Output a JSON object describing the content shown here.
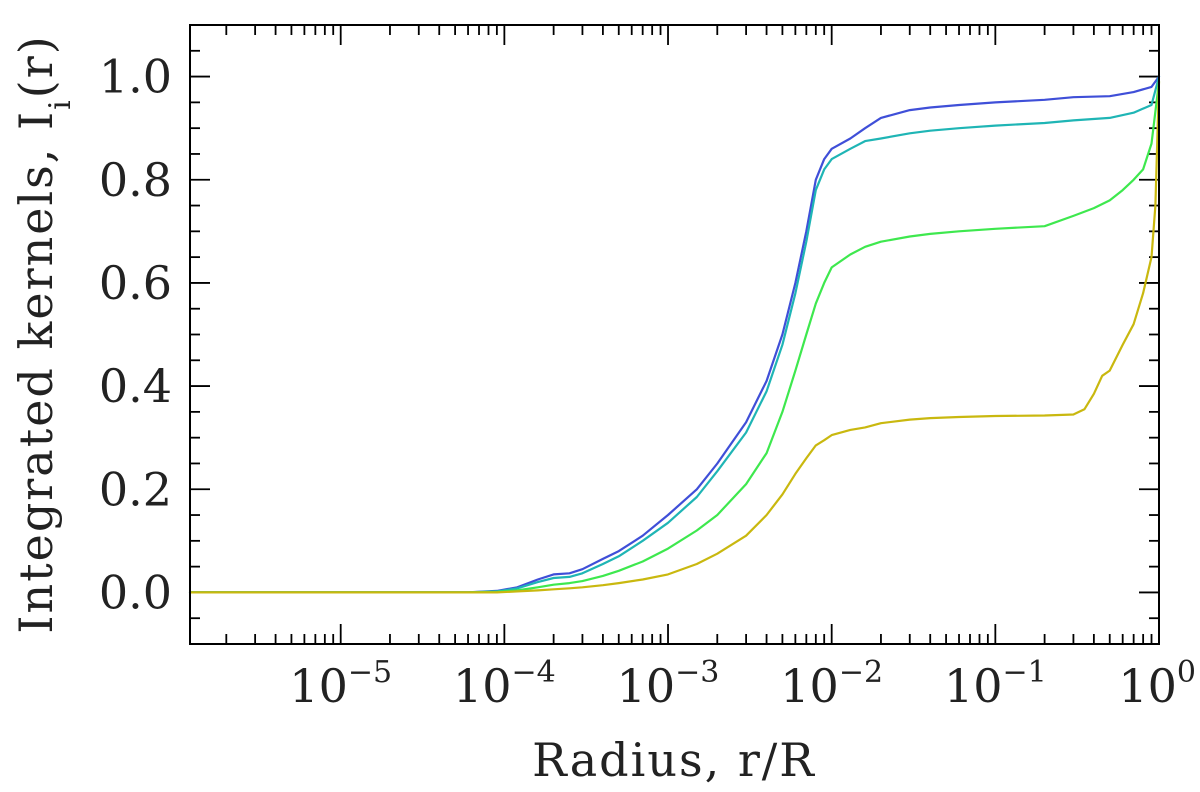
{
  "chart_data": {
    "type": "line",
    "xscale": "log",
    "xlim": [
      1.2e-06,
      1.0
    ],
    "ylim": [
      -0.1,
      1.1
    ],
    "xlabel": "Radius, r/R",
    "ylabel_main": "Integrated kernels, I",
    "ylabel_sub": "i",
    "ylabel_tail": "(r)",
    "xticks": [
      {
        "base": "10",
        "exp": "−5",
        "value": 1e-05
      },
      {
        "base": "10",
        "exp": "−4",
        "value": 0.0001
      },
      {
        "base": "10",
        "exp": "−3",
        "value": 0.001
      },
      {
        "base": "10",
        "exp": "−2",
        "value": 0.01
      },
      {
        "base": "10",
        "exp": "−1",
        "value": 0.1
      },
      {
        "base": "10",
        "exp": "0",
        "value": 1
      }
    ],
    "yticks": [
      {
        "label": "0.0",
        "value": 0.0
      },
      {
        "label": "0.2",
        "value": 0.2
      },
      {
        "label": "0.4",
        "value": 0.4
      },
      {
        "label": "0.6",
        "value": 0.6
      },
      {
        "label": "0.8",
        "value": 0.8
      },
      {
        "label": "1.0",
        "value": 1.0
      }
    ],
    "series": [
      {
        "color": "#3f4fd8",
        "x": [
          1.2e-06,
          3e-05,
          6e-05,
          9e-05,
          0.00012,
          0.00016,
          0.0002,
          0.00025,
          0.0003,
          0.0004,
          0.0005,
          0.0007,
          0.001,
          0.0015,
          0.002,
          0.003,
          0.004,
          0.005,
          0.006,
          0.007,
          0.008,
          0.009,
          0.01,
          0.013,
          0.016,
          0.02,
          0.03,
          0.04,
          0.06,
          0.1,
          0.2,
          0.3,
          0.5,
          0.7,
          0.9,
          1.0
        ],
        "y": [
          0.0,
          0.0,
          0.0,
          0.003,
          0.01,
          0.025,
          0.035,
          0.037,
          0.045,
          0.065,
          0.08,
          0.11,
          0.15,
          0.2,
          0.25,
          0.33,
          0.41,
          0.5,
          0.6,
          0.7,
          0.8,
          0.84,
          0.86,
          0.88,
          0.9,
          0.92,
          0.935,
          0.94,
          0.945,
          0.95,
          0.955,
          0.96,
          0.962,
          0.97,
          0.98,
          1.0
        ]
      },
      {
        "color": "#1fb5b5",
        "x": [
          1.2e-06,
          3e-05,
          6e-05,
          9e-05,
          0.00012,
          0.00016,
          0.0002,
          0.00025,
          0.0003,
          0.0004,
          0.0005,
          0.0007,
          0.001,
          0.0015,
          0.002,
          0.003,
          0.004,
          0.005,
          0.006,
          0.007,
          0.008,
          0.009,
          0.01,
          0.013,
          0.016,
          0.02,
          0.03,
          0.04,
          0.06,
          0.1,
          0.2,
          0.3,
          0.5,
          0.7,
          0.9,
          1.0
        ],
        "y": [
          0.0,
          0.0,
          0.0,
          0.002,
          0.008,
          0.02,
          0.028,
          0.03,
          0.037,
          0.055,
          0.07,
          0.1,
          0.135,
          0.185,
          0.235,
          0.31,
          0.39,
          0.48,
          0.58,
          0.68,
          0.78,
          0.82,
          0.84,
          0.86,
          0.875,
          0.88,
          0.89,
          0.895,
          0.9,
          0.905,
          0.91,
          0.915,
          0.92,
          0.93,
          0.945,
          1.0
        ]
      },
      {
        "color": "#3ee84e",
        "x": [
          1.2e-06,
          3e-05,
          6e-05,
          9e-05,
          0.00012,
          0.00016,
          0.0002,
          0.00025,
          0.0003,
          0.0004,
          0.0005,
          0.0007,
          0.001,
          0.0015,
          0.002,
          0.003,
          0.004,
          0.005,
          0.006,
          0.007,
          0.008,
          0.009,
          0.01,
          0.013,
          0.016,
          0.02,
          0.03,
          0.04,
          0.06,
          0.1,
          0.2,
          0.3,
          0.4,
          0.5,
          0.6,
          0.7,
          0.8,
          0.9,
          1.0
        ],
        "y": [
          0.0,
          0.0,
          0.0,
          0.001,
          0.004,
          0.01,
          0.015,
          0.018,
          0.022,
          0.032,
          0.042,
          0.06,
          0.085,
          0.12,
          0.15,
          0.21,
          0.27,
          0.35,
          0.43,
          0.5,
          0.56,
          0.6,
          0.63,
          0.655,
          0.67,
          0.68,
          0.69,
          0.695,
          0.7,
          0.705,
          0.71,
          0.73,
          0.745,
          0.76,
          0.78,
          0.8,
          0.82,
          0.87,
          0.99
        ]
      },
      {
        "color": "#c9b80f",
        "x": [
          1.2e-06,
          3e-05,
          6e-05,
          9e-05,
          0.00012,
          0.00016,
          0.0002,
          0.00025,
          0.0003,
          0.0004,
          0.0005,
          0.0007,
          0.001,
          0.0015,
          0.002,
          0.003,
          0.004,
          0.005,
          0.006,
          0.007,
          0.008,
          0.009,
          0.01,
          0.013,
          0.016,
          0.02,
          0.03,
          0.04,
          0.06,
          0.1,
          0.2,
          0.3,
          0.35,
          0.4,
          0.45,
          0.5,
          0.6,
          0.7,
          0.8,
          0.9,
          0.95,
          1.0
        ],
        "y": [
          0.0,
          0.0,
          0.0,
          0.0,
          0.002,
          0.004,
          0.006,
          0.008,
          0.01,
          0.014,
          0.018,
          0.025,
          0.035,
          0.055,
          0.075,
          0.11,
          0.15,
          0.19,
          0.23,
          0.26,
          0.285,
          0.295,
          0.305,
          0.315,
          0.32,
          0.328,
          0.335,
          0.338,
          0.34,
          0.342,
          0.343,
          0.345,
          0.355,
          0.385,
          0.42,
          0.43,
          0.48,
          0.52,
          0.58,
          0.65,
          0.75,
          0.99
        ]
      }
    ]
  }
}
